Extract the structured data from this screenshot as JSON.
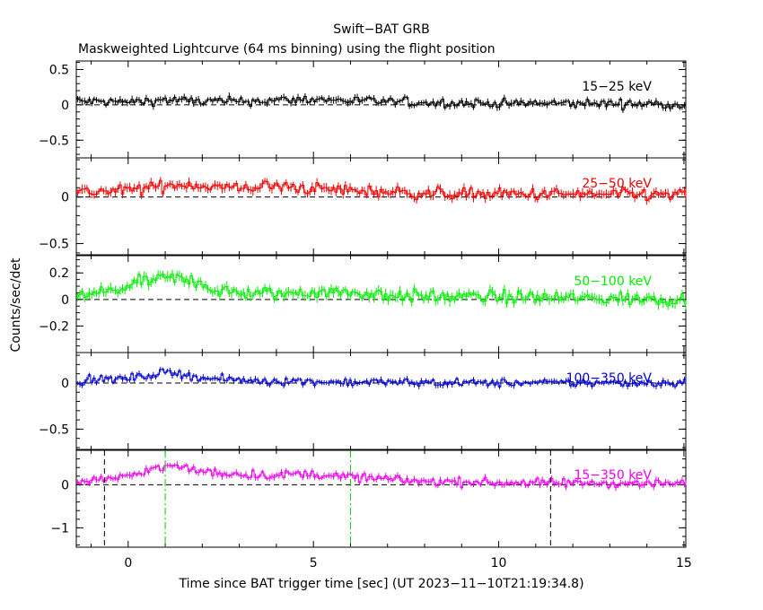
{
  "title": "Swift−BAT GRB",
  "subtitle": "Maskweighted Lightcurve (64 ms binning) using the flight position",
  "xlabel": "Time since BAT trigger time [sec] (UT 2023−11−10T21:19:34.8)",
  "ylabel": "Counts/sec/det",
  "chart_data": {
    "type": "line",
    "title": "Swift−BAT GRB",
    "subtitle": "Maskweighted Lightcurve (64 ms binning) using the flight position",
    "xlabel": "Time since BAT trigger time [sec] (UT 2023−11−10T21:19:34.8)",
    "ylabel": "Counts/sec/det",
    "xlim": [
      -1.4,
      15.05
    ],
    "x_ticks": [
      0,
      5,
      10,
      15
    ],
    "x_tick_labels": [
      "0",
      "5",
      "10",
      "15"
    ],
    "bin_width_sec": 0.064,
    "grid": false,
    "panels": [
      {
        "name": "15−25 keV",
        "color": "#000000",
        "ylim": [
          -0.75,
          0.62
        ],
        "y_ticks": [
          -0.5,
          0,
          0.5
        ],
        "y_tick_labels": [
          "−0.5",
          "0",
          "0.5"
        ],
        "envelope": [
          [
            -1.4,
            0.05
          ],
          [
            0,
            0.04
          ],
          [
            1.0,
            0.07
          ],
          [
            2.0,
            0.05
          ],
          [
            3.0,
            0.05
          ],
          [
            5.0,
            0.08
          ],
          [
            6.0,
            0.06
          ],
          [
            8.0,
            0.03
          ],
          [
            10.0,
            0.02
          ],
          [
            12.0,
            0.02
          ],
          [
            15.05,
            0.01
          ]
        ],
        "noise": 0.045
      },
      {
        "name": "25−50 keV",
        "color": "#ee0000",
        "ylim": [
          -0.62,
          0.42
        ],
        "y_ticks": [
          -0.5,
          0
        ],
        "y_tick_labels": [
          "−0.5",
          "0"
        ],
        "envelope": [
          [
            -1.4,
            0.05
          ],
          [
            0,
            0.07
          ],
          [
            1.0,
            0.12
          ],
          [
            1.5,
            0.14
          ],
          [
            2.0,
            0.12
          ],
          [
            3.0,
            0.09
          ],
          [
            3.6,
            0.12
          ],
          [
            5.0,
            0.09
          ],
          [
            6.0,
            0.07
          ],
          [
            8.0,
            0.04
          ],
          [
            10.0,
            0.03
          ],
          [
            12.0,
            0.03
          ],
          [
            15.05,
            0.02
          ]
        ],
        "noise": 0.045
      },
      {
        "name": "50−100 keV",
        "color": "#00ee00",
        "ylim": [
          -0.4,
          0.33
        ],
        "y_ticks": [
          -0.2,
          0,
          0.2
        ],
        "y_tick_labels": [
          "−0.2",
          "0",
          "0.2"
        ],
        "envelope": [
          [
            -1.4,
            0.03
          ],
          [
            -0.5,
            0.06
          ],
          [
            0,
            0.1
          ],
          [
            0.5,
            0.14
          ],
          [
            1.0,
            0.16
          ],
          [
            1.5,
            0.15
          ],
          [
            1.9,
            0.14
          ],
          [
            2.3,
            0.07
          ],
          [
            3.0,
            0.05
          ],
          [
            4.0,
            0.04
          ],
          [
            5.0,
            0.06
          ],
          [
            6.0,
            0.05
          ],
          [
            8.0,
            0.02
          ],
          [
            10.0,
            0.02
          ],
          [
            12.0,
            0.01
          ],
          [
            15.05,
            0.0
          ]
        ],
        "noise": 0.035
      },
      {
        "name": "100−350 keV",
        "color": "#0000cc",
        "ylim": [
          -0.72,
          0.33
        ],
        "y_ticks": [
          -0.5,
          0
        ],
        "y_tick_labels": [
          "−0.5",
          "0"
        ],
        "envelope": [
          [
            -1.4,
            0.02
          ],
          [
            0,
            0.05
          ],
          [
            0.5,
            0.08
          ],
          [
            1.0,
            0.11
          ],
          [
            1.5,
            0.1
          ],
          [
            2.0,
            0.05
          ],
          [
            3.0,
            0.03
          ],
          [
            4.0,
            0.02
          ],
          [
            6.0,
            0.01
          ],
          [
            10.0,
            0.0
          ],
          [
            15.05,
            0.0
          ]
        ],
        "noise": 0.03
      },
      {
        "name": "15−350 keV",
        "color": "#ee00ee",
        "ylim": [
          -1.45,
          0.8
        ],
        "y_ticks": [
          -1,
          0
        ],
        "y_tick_labels": [
          "−1",
          "0"
        ],
        "envelope": [
          [
            -1.4,
            0.08
          ],
          [
            0,
            0.18
          ],
          [
            0.5,
            0.35
          ],
          [
            1.0,
            0.42
          ],
          [
            1.5,
            0.4
          ],
          [
            2.0,
            0.3
          ],
          [
            3.0,
            0.25
          ],
          [
            4.0,
            0.22
          ],
          [
            5.0,
            0.25
          ],
          [
            6.0,
            0.18
          ],
          [
            8.0,
            0.08
          ],
          [
            10.0,
            0.05
          ],
          [
            12.0,
            0.04
          ],
          [
            15.05,
            0.03
          ]
        ],
        "noise": 0.07
      }
    ],
    "annotations": [
      {
        "type": "vline",
        "x": -0.64,
        "style": "dashed",
        "color": "#000000"
      },
      {
        "type": "vline",
        "x": 1.0,
        "style": "dash-dot",
        "color": "#00cc00"
      },
      {
        "type": "vline",
        "x": 6.0,
        "style": "dash-dot",
        "color": "#00cc00"
      },
      {
        "type": "vline",
        "x": 11.4,
        "style": "dashed",
        "color": "#000000"
      }
    ]
  }
}
